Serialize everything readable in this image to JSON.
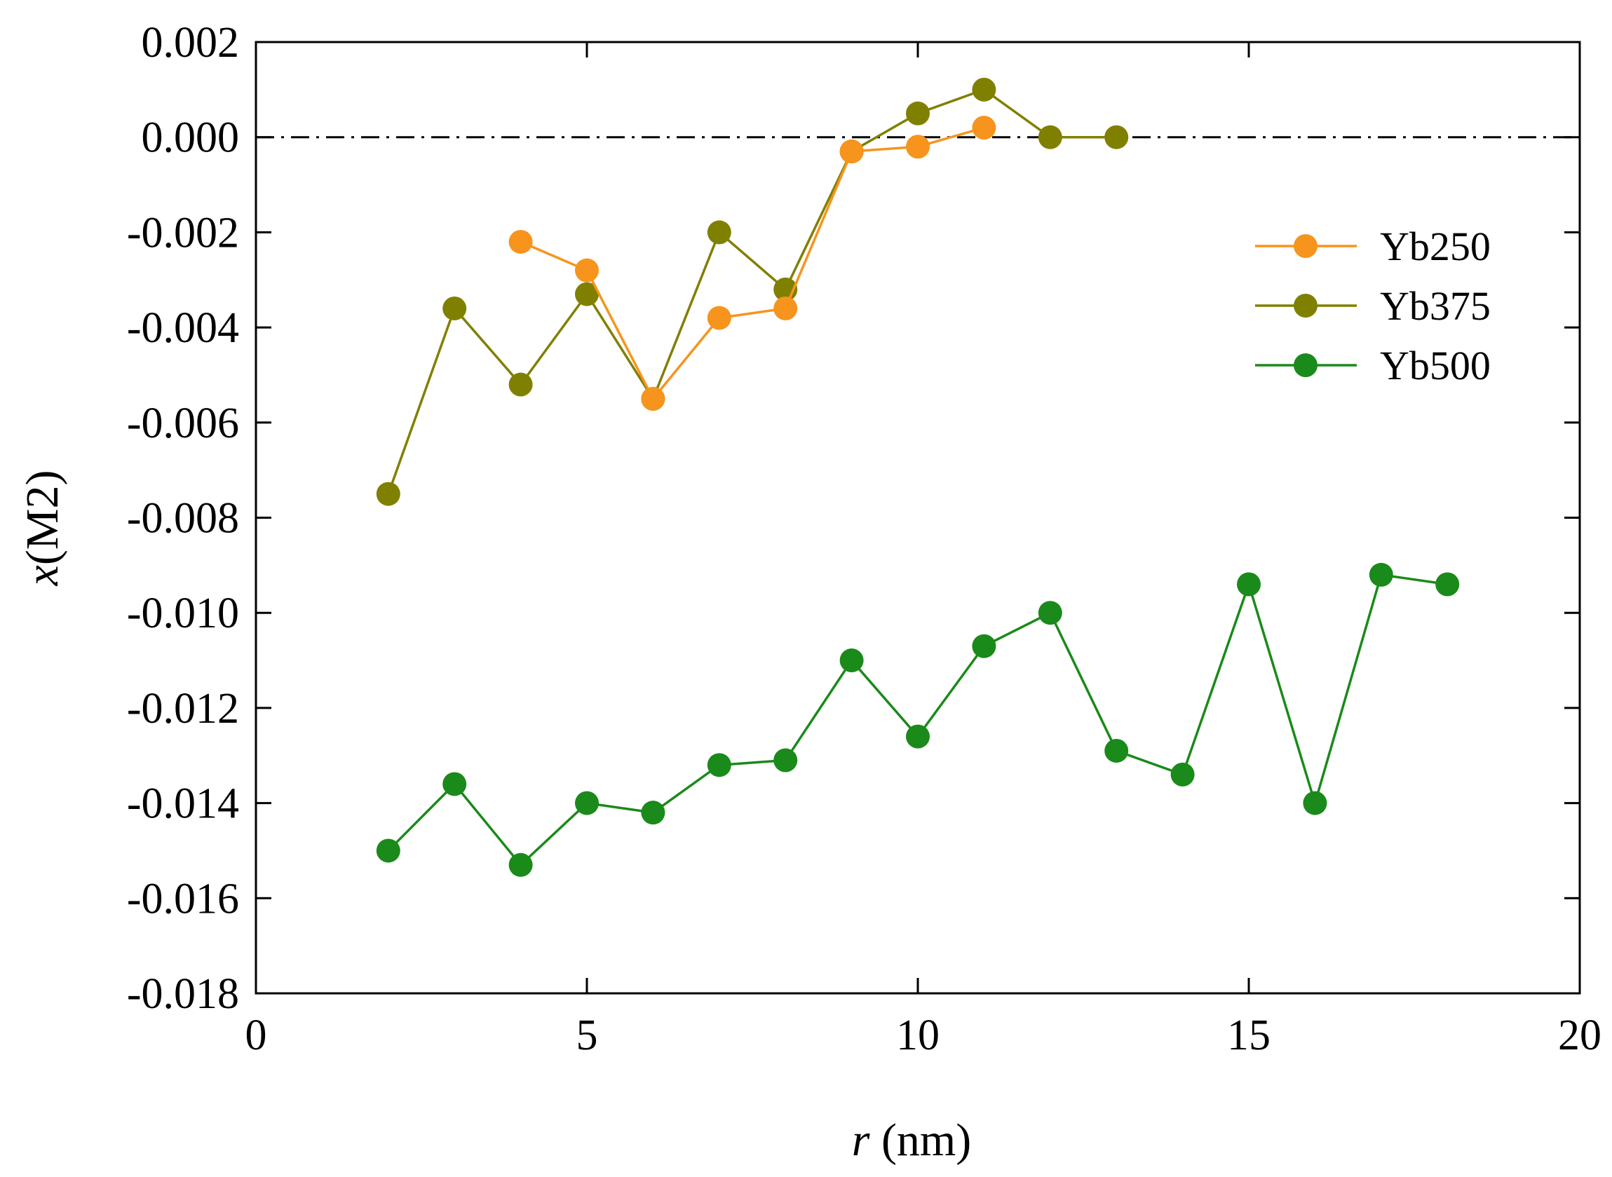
{
  "chart_data": {
    "type": "line",
    "title": "",
    "xlabel_italic": "r",
    "xlabel_rest": " (nm)",
    "ylabel_italic": "x",
    "ylabel_rest": "(M2)",
    "xlim": [
      0,
      20
    ],
    "ylim": [
      -0.018,
      0.002
    ],
    "xticks": [
      0,
      5,
      10,
      15,
      20
    ],
    "xtick_labels": [
      "0",
      "5",
      "10",
      "15",
      "20"
    ],
    "yticks": [
      0.002,
      0.0,
      -0.002,
      -0.004,
      -0.006,
      -0.008,
      -0.01,
      -0.012,
      -0.014,
      -0.016,
      -0.018
    ],
    "ytick_labels": [
      "0.002",
      "0.000",
      "-0.002",
      "-0.004",
      "-0.006",
      "-0.008",
      "-0.010",
      "-0.012",
      "-0.014",
      "-0.016",
      "-0.018"
    ],
    "reference_line_y": 0.0,
    "grid": false,
    "legend_position": "right, upper-middle",
    "series": [
      {
        "name": "Yb250",
        "color": "#f7941d",
        "x": [
          4,
          5,
          6,
          7,
          8,
          9,
          10,
          11
        ],
        "y": [
          -0.0022,
          -0.0028,
          -0.0055,
          -0.0038,
          -0.0036,
          -0.0003,
          -0.0002,
          0.0002
        ]
      },
      {
        "name": "Yb375",
        "color": "#808000",
        "x": [
          2,
          3,
          4,
          5,
          6,
          7,
          8,
          9,
          10,
          11,
          12,
          13
        ],
        "y": [
          -0.0075,
          -0.0036,
          -0.0052,
          -0.0033,
          -0.0055,
          -0.002,
          -0.0032,
          -0.0003,
          0.0005,
          0.001,
          0.0,
          0.0
        ]
      },
      {
        "name": "Yb500",
        "color": "#1a8a1a",
        "x": [
          2,
          3,
          4,
          5,
          6,
          7,
          8,
          9,
          10,
          11,
          12,
          13,
          14,
          15,
          16,
          17,
          18
        ],
        "y": [
          -0.015,
          -0.0136,
          -0.0153,
          -0.014,
          -0.0142,
          -0.0132,
          -0.0131,
          -0.011,
          -0.0126,
          -0.0107,
          -0.01,
          -0.0129,
          -0.0134,
          -0.0094,
          -0.014,
          -0.0092,
          -0.0094
        ]
      }
    ]
  }
}
